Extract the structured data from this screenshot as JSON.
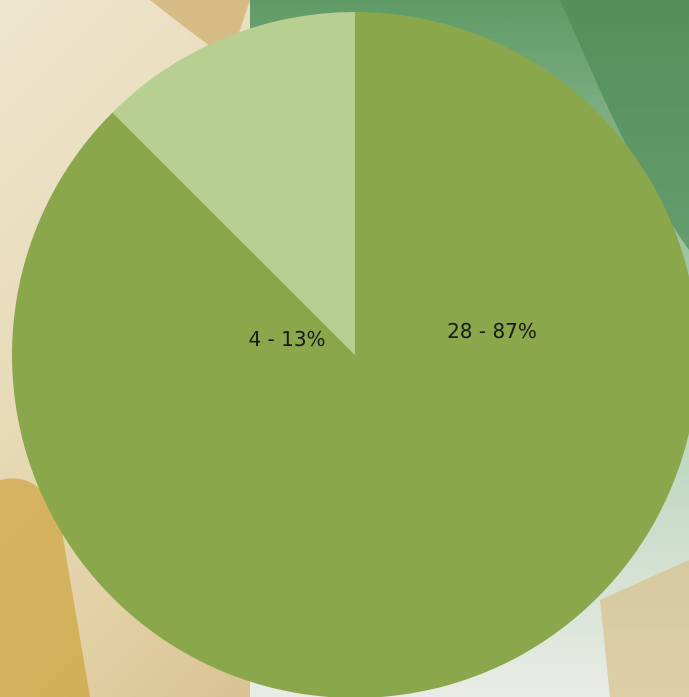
{
  "colors": {
    "slice_large": "#8aa74c",
    "slice_small": "#b8cf92",
    "background_left": "#e8dcc4",
    "background_right": "#7fae86"
  },
  "chart_data": {
    "type": "pie",
    "slices": [
      {
        "value": 28,
        "percent": 87,
        "label": "28 - 87%",
        "color": "#8aa74c"
      },
      {
        "value": 4,
        "percent": 13,
        "label": "4 - 13%",
        "color": "#b8cf92"
      }
    ],
    "legend": "none",
    "start_angle_deg": 0,
    "direction": "clockwise"
  }
}
